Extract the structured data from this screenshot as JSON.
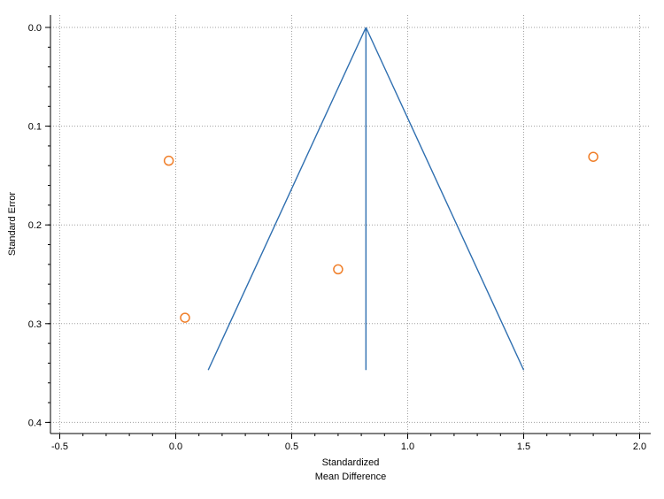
{
  "chart_data": {
    "type": "scatter",
    "title": "",
    "xlabel": [
      "Standardized",
      "Mean Difference"
    ],
    "ylabel": "Standard Error",
    "xlim": [
      -0.5,
      2.0
    ],
    "ylim": [
      0.0,
      0.4
    ],
    "y_inverted": true,
    "grid": true,
    "x_ticks": [
      "-0.5",
      "0.0",
      "0.5",
      "1.0",
      "1.5",
      "2.0"
    ],
    "y_ticks": [
      "0.0",
      "0.1",
      "0.2",
      "0.3",
      "0.4"
    ],
    "points": [
      {
        "x": -0.03,
        "y": 0.135
      },
      {
        "x": 0.04,
        "y": 0.294
      },
      {
        "x": 0.7,
        "y": 0.245
      },
      {
        "x": 1.8,
        "y": 0.131
      }
    ],
    "funnel": {
      "center_x": 0.82,
      "apex_y": 0.0,
      "bottom_y": 0.347,
      "left_bottom_x": 0.14,
      "right_bottom_x": 1.5
    },
    "colors": {
      "points": "#f07f2a",
      "funnel": "#2f6fb0",
      "axis": "#000000",
      "grid": "#a0a0a0"
    }
  }
}
